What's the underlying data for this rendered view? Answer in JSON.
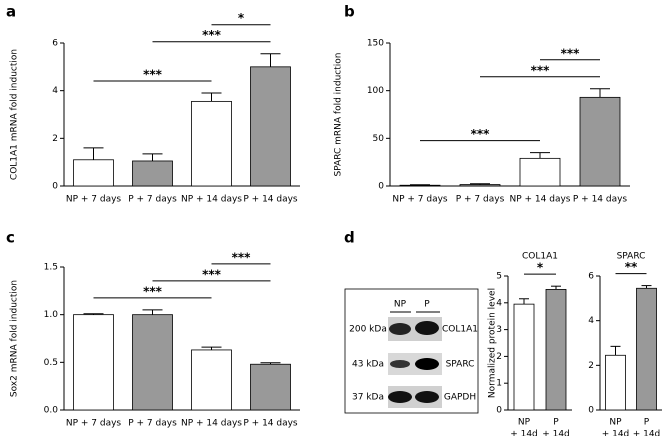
{
  "panel_labels": [
    "a",
    "b",
    "c",
    "d"
  ],
  "blot": {
    "lanes": [
      "NP",
      "P"
    ],
    "rows": [
      {
        "size": "200 kDa",
        "protein": "COL1A1"
      },
      {
        "size": "43 kDa",
        "protein": "SPARC"
      },
      {
        "size": "37 kDa",
        "protein": "GAPDH"
      }
    ]
  },
  "protein_ylabel": "Normalized protein level",
  "chart_data": [
    {
      "type": "bar",
      "ylabel": "COL1A1 mRNA fold induction",
      "categories": [
        "NP + 7 days",
        "P + 7 days",
        "NP + 14 days",
        "P + 14 days"
      ],
      "values": [
        1.1,
        1.05,
        3.55,
        5.0
      ],
      "errors": [
        0.5,
        0.3,
        0.35,
        0.55
      ],
      "colors": [
        "#ffffff",
        "#999999",
        "#ffffff",
        "#999999"
      ],
      "ylim": [
        0,
        6
      ],
      "yticks": [
        0,
        2,
        4,
        6
      ],
      "significance": [
        {
          "from": 0,
          "to": 2,
          "label": "***"
        },
        {
          "from": 1,
          "to": 3,
          "label": "***"
        },
        {
          "from": 2,
          "to": 3,
          "label": "*"
        }
      ]
    },
    {
      "type": "bar",
      "ylabel": "SPARC mRNA fold induction",
      "categories": [
        "NP + 7 days",
        "P + 7 days",
        "NP + 14 days",
        "P + 14 days"
      ],
      "values": [
        0.8,
        1.5,
        29,
        93
      ],
      "errors": [
        0.5,
        0.8,
        6,
        9
      ],
      "colors": [
        "#ffffff",
        "#999999",
        "#ffffff",
        "#999999"
      ],
      "ylim": [
        0,
        150
      ],
      "yticks": [
        0,
        50,
        100,
        150
      ],
      "significance": [
        {
          "from": 0,
          "to": 2,
          "label": "***"
        },
        {
          "from": 1,
          "to": 3,
          "label": "***"
        },
        {
          "from": 2,
          "to": 3,
          "label": "***"
        }
      ]
    },
    {
      "type": "bar",
      "ylabel": "Sox2 mRNA fold induction",
      "categories": [
        "NP + 7 days",
        "P + 7 days",
        "NP + 14 days",
        "P + 14 days"
      ],
      "values": [
        1.0,
        1.0,
        0.63,
        0.48
      ],
      "errors": [
        0.01,
        0.05,
        0.03,
        0.015
      ],
      "colors": [
        "#ffffff",
        "#999999",
        "#ffffff",
        "#999999"
      ],
      "ylim": [
        0,
        1.5
      ],
      "yticks": [
        {
          "value": 0,
          "label": "0.0"
        },
        0.5,
        {
          "value": 1,
          "label": "1.0"
        },
        1.5
      ],
      "significance": [
        {
          "from": 0,
          "to": 2,
          "label": "***"
        },
        {
          "from": 1,
          "to": 3,
          "label": "***"
        },
        {
          "from": 2,
          "to": 3,
          "label": "***"
        }
      ]
    },
    {
      "type": "bar",
      "title": "COL1A1",
      "categories": [
        [
          "NP",
          "+ 14d"
        ],
        [
          "P",
          "+ 14d"
        ]
      ],
      "values": [
        3.95,
        4.5
      ],
      "errors": [
        0.2,
        0.12
      ],
      "colors": [
        "#ffffff",
        "#999999"
      ],
      "ylim": [
        0,
        5
      ],
      "yticks": [
        0,
        1,
        2,
        3,
        4,
        5
      ],
      "significance": [
        {
          "from": 0,
          "to": 1,
          "label": "*"
        }
      ]
    },
    {
      "type": "bar",
      "title": "SPARC",
      "categories": [
        [
          "NP",
          "+ 14d"
        ],
        [
          "P",
          "+ 14d"
        ]
      ],
      "values": [
        2.45,
        5.45
      ],
      "errors": [
        0.4,
        0.12
      ],
      "colors": [
        "#ffffff",
        "#999999"
      ],
      "ylim": [
        0,
        6
      ],
      "yticks": [
        0,
        2,
        4,
        6
      ],
      "significance": [
        {
          "from": 0,
          "to": 1,
          "label": "**"
        }
      ]
    }
  ]
}
